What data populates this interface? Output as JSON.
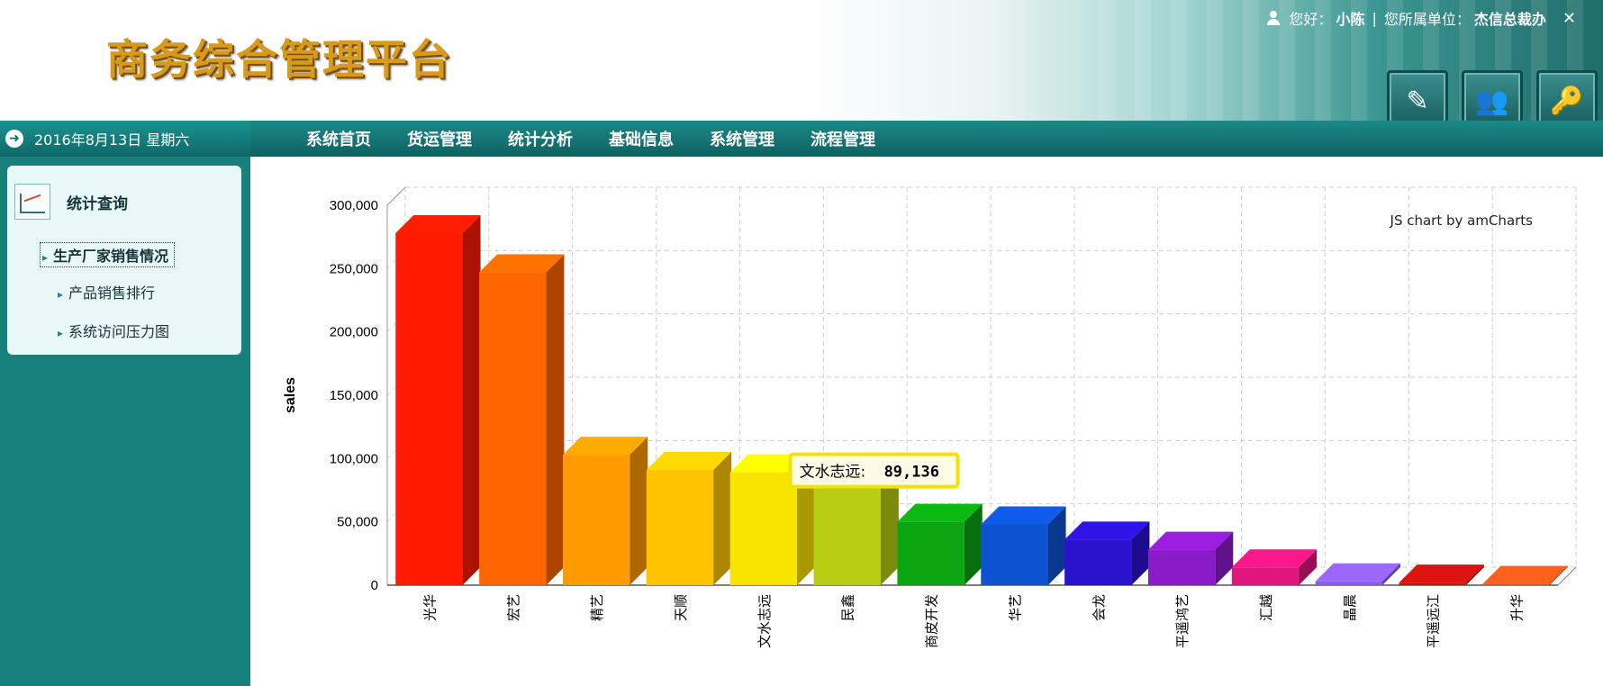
{
  "header": {
    "logo_text": "商务综合管理平台",
    "greeting_label": "您好：",
    "user_name": "小陈",
    "separator": "|",
    "unit_label": "您所属单位：",
    "unit_name": "杰信总裁办",
    "close_glyph": "✕"
  },
  "nav": {
    "date": "2016年8月13日 星期六",
    "items": [
      "系统首页",
      "货运管理",
      "统计分析",
      "基础信息",
      "系统管理",
      "流程管理"
    ]
  },
  "sidebar": {
    "title": "统计查询",
    "links": [
      "生产厂家销售情况",
      "产品销售排行",
      "系统访问压力图"
    ]
  },
  "chart_data": {
    "type": "bar",
    "categories": [
      "光华",
      "宏艺",
      "精艺",
      "天顺",
      "文水志远",
      "民鑫",
      "商皮开发",
      "华艺",
      "会龙",
      "平遥鸿艺",
      "汇越",
      "晶晨",
      "平遥远江",
      "升华"
    ],
    "values": [
      278000,
      247000,
      103000,
      91000,
      89136,
      87000,
      50000,
      48000,
      36000,
      28000,
      14000,
      3000,
      2000,
      1000
    ],
    "colors": [
      "#ff1a00",
      "#ff6600",
      "#ff9a00",
      "#ffc300",
      "#f7e400",
      "#b8cc11",
      "#0aa511",
      "#0d52d1",
      "#2a12cf",
      "#8b1ac9",
      "#e0157e",
      "#8a5cf5",
      "#c7110e",
      "#e3571a"
    ],
    "ylabel": "sales",
    "ylim": [
      0,
      300000
    ],
    "yticks": [
      "0",
      "50,000",
      "100,000",
      "150,000",
      "200,000",
      "250,000",
      "300,000"
    ],
    "watermark": "JS chart by amCharts",
    "tooltip": {
      "label": "文水志远:",
      "value": "89,136"
    },
    "grid": true
  }
}
